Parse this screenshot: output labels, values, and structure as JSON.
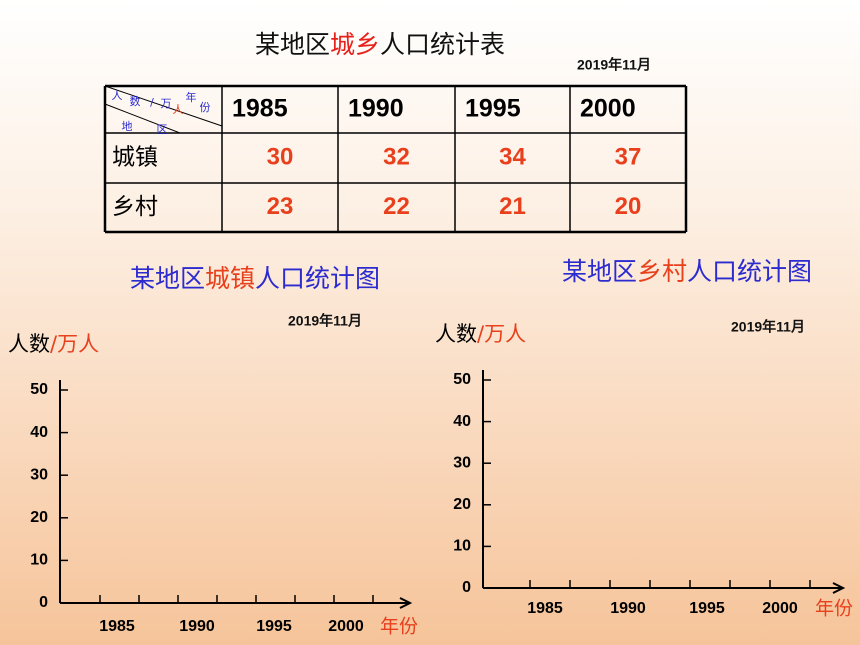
{
  "title": {
    "parts": [
      "某地区",
      "城乡",
      "人口统计表"
    ]
  },
  "date": "2019年11月",
  "table": {
    "corner": [
      "人",
      "数",
      "/",
      "万",
      "人",
      "年",
      "份",
      "地",
      "区"
    ],
    "header": [
      "1985",
      "1990",
      "1995",
      "2000"
    ],
    "rows": [
      [
        "城镇",
        30,
        32,
        34,
        37
      ],
      [
        "乡村",
        23,
        22,
        21,
        20
      ]
    ]
  },
  "charts": [
    {
      "title": [
        "某地区",
        "城镇",
        "人口统计图"
      ],
      "date": "2019年11月",
      "y_label": [
        "人数",
        "/万人"
      ],
      "yticks": [
        0,
        10,
        20,
        30,
        40,
        50
      ],
      "categories": [
        "1985",
        "1990",
        "1995",
        "2000"
      ],
      "x_label": "年份"
    },
    {
      "title": [
        "某地区",
        "乡村",
        "人口统计图"
      ],
      "date": "2019年11月",
      "y_label": [
        "人数",
        "/万人"
      ],
      "yticks": [
        0,
        10,
        20,
        30,
        40,
        50
      ],
      "categories": [
        "1985",
        "1990",
        "1995",
        "2000"
      ],
      "x_label": "年份"
    }
  ]
}
